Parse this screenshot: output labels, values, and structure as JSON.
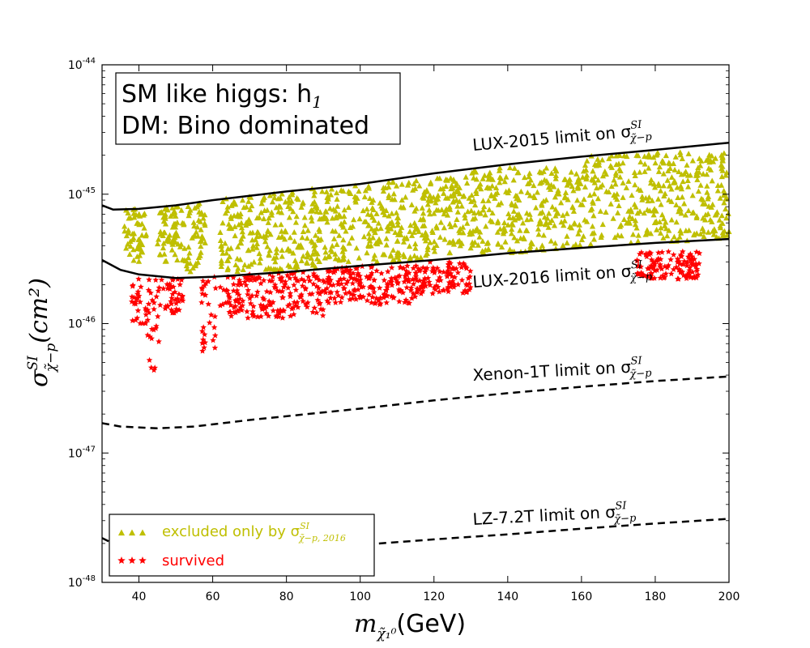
{
  "chart_data": {
    "type": "scatter",
    "title": "",
    "annotation_lines": [
      "SM like higgs: h",
      "DM: Bino dominated"
    ],
    "annotation_subscript": "1",
    "xlabel": {
      "symbol": "m",
      "subscript": "χ̃₁⁰",
      "unit": "(GeV)"
    },
    "ylabel": {
      "symbol": "σ",
      "superscript": "SI",
      "subscript": "χ̃−p",
      "unit": "(cm²)"
    },
    "xlim": [
      30,
      200
    ],
    "ylim": [
      1e-48,
      1e-44
    ],
    "yscale": "log",
    "x_ticks": [
      "40",
      "60",
      "80",
      "100",
      "120",
      "140",
      "160",
      "180",
      "200"
    ],
    "y_ticks": [
      {
        "base": "10",
        "exp": "-48"
      },
      {
        "base": "10",
        "exp": "-47"
      },
      {
        "base": "10",
        "exp": "-46"
      },
      {
        "base": "10",
        "exp": "-45"
      },
      {
        "base": "10",
        "exp": "-44"
      }
    ],
    "legend_position": "lower-left",
    "series": [
      {
        "name": "excluded only by σ^SI_χ̃−p,2016",
        "legend_text": "excluded only by σ",
        "legend_sup": "SI",
        "legend_sub": "χ̃−p, 2016",
        "marker": "triangle",
        "color": "#bfbf00",
        "regions": [
          {
            "x": [
              36,
              42
            ],
            "y": [
              3e-46,
              8e-46
            ]
          },
          {
            "x": [
              45,
              52
            ],
            "y": [
              3e-46,
              8e-46
            ]
          },
          {
            "x": [
              52,
              58
            ],
            "y": [
              2.5e-46,
              9e-46
            ]
          },
          {
            "x": [
              62,
              90
            ],
            "y": [
              2.5e-46,
              1.1e-45
            ]
          },
          {
            "x": [
              90,
              120
            ],
            "y": [
              3e-46,
              1.3e-45
            ]
          },
          {
            "x": [
              120,
              160
            ],
            "y": [
              3.5e-46,
              1.6e-45
            ]
          },
          {
            "x": [
              160,
              200
            ],
            "y": [
              4e-46,
              2.1e-45
            ]
          }
        ]
      },
      {
        "name": "survived",
        "legend_text": "survived",
        "marker": "star",
        "color": "#ff0000",
        "regions": [
          {
            "x": [
              38,
              42
            ],
            "y": [
              1e-46,
              2.5e-46
            ]
          },
          {
            "x": [
              42,
              46
            ],
            "y": [
              4e-47,
              2.2e-46
            ]
          },
          {
            "x": [
              46,
              52
            ],
            "y": [
              1.2e-46,
              2.3e-46
            ]
          },
          {
            "x": [
              57,
              61
            ],
            "y": [
              6e-47,
              2.3e-46
            ]
          },
          {
            "x": [
              62,
              90
            ],
            "y": [
              1.1e-46,
              2.5e-46
            ]
          },
          {
            "x": [
              90,
              115
            ],
            "y": [
              1.4e-46,
              2.8e-46
            ]
          },
          {
            "x": [
              115,
              130
            ],
            "y": [
              1.7e-46,
              3e-46
            ]
          },
          {
            "x": [
              175,
              192
            ],
            "y": [
              2.2e-46,
              3.6e-46
            ]
          }
        ]
      }
    ],
    "limit_curves": [
      {
        "name": "LUX-2015 limit on σ",
        "label_sup": "SI",
        "label_sub": "χ̃−p",
        "style": "solid",
        "color": "#000000",
        "points": [
          [
            30,
            8.2e-46
          ],
          [
            33,
            7.6e-46
          ],
          [
            40,
            7.7e-46
          ],
          [
            50,
            8.2e-46
          ],
          [
            60,
            9e-46
          ],
          [
            80,
            1.05e-45
          ],
          [
            100,
            1.2e-45
          ],
          [
            120,
            1.45e-45
          ],
          [
            140,
            1.7e-45
          ],
          [
            160,
            1.95e-45
          ],
          [
            180,
            2.2e-45
          ],
          [
            200,
            2.5e-45
          ]
        ]
      },
      {
        "name": "LUX-2016 limit on σ",
        "label_sup": "SI",
        "label_sub": "χ̃−p",
        "style": "solid",
        "color": "#000000",
        "points": [
          [
            30,
            3.1e-46
          ],
          [
            35,
            2.6e-46
          ],
          [
            40,
            2.4e-46
          ],
          [
            50,
            2.25e-46
          ],
          [
            60,
            2.3e-46
          ],
          [
            80,
            2.5e-46
          ],
          [
            100,
            2.8e-46
          ],
          [
            120,
            3.1e-46
          ],
          [
            140,
            3.5e-46
          ],
          [
            160,
            3.85e-46
          ],
          [
            180,
            4.2e-46
          ],
          [
            200,
            4.5e-46
          ]
        ]
      },
      {
        "name": "Xenon-1T limit on σ",
        "label_sup": "SI",
        "label_sub": "χ̃−p",
        "style": "dashed",
        "color": "#000000",
        "points": [
          [
            30,
            1.7e-47
          ],
          [
            35,
            1.6e-47
          ],
          [
            45,
            1.55e-47
          ],
          [
            55,
            1.6e-47
          ],
          [
            70,
            1.8e-47
          ],
          [
            100,
            2.2e-47
          ],
          [
            120,
            2.55e-47
          ],
          [
            140,
            2.9e-47
          ],
          [
            160,
            3.25e-47
          ],
          [
            180,
            3.6e-47
          ],
          [
            200,
            3.9e-47
          ]
        ]
      },
      {
        "name": "LZ-7.2T limit on σ",
        "label_sup": "SI",
        "label_sub": "χ̃−p",
        "style": "dashed",
        "color": "#000000",
        "points": [
          [
            30,
            2.2e-48
          ],
          [
            33,
            2e-48
          ],
          [
            40,
            1.75e-48
          ],
          [
            60,
            1.7e-48
          ],
          [
            80,
            1.8e-48
          ],
          [
            100,
            1.95e-48
          ],
          [
            120,
            2.15e-48
          ],
          [
            140,
            2.35e-48
          ],
          [
            160,
            2.6e-48
          ],
          [
            180,
            2.85e-48
          ],
          [
            200,
            3.1e-48
          ]
        ]
      }
    ]
  }
}
